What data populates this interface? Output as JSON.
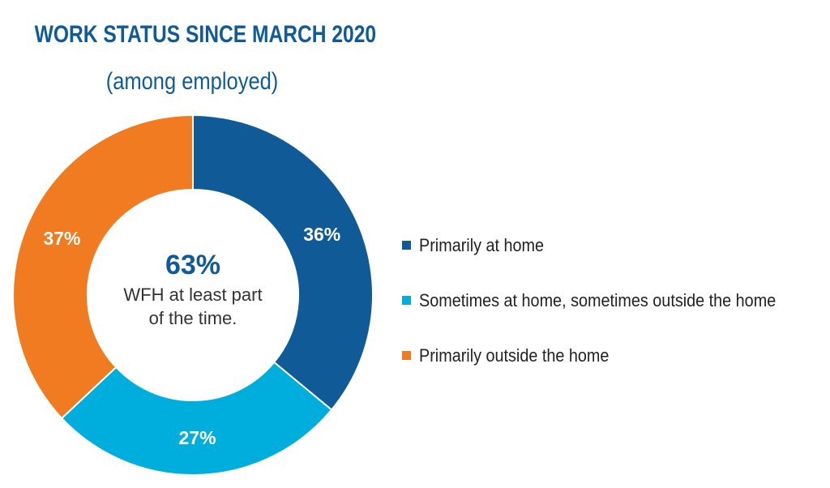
{
  "chart_data": {
    "type": "pie",
    "title": "WORK STATUS SINCE MARCH 2020",
    "subtitle": "(among employed)",
    "center_value": "63%",
    "center_text": [
      "WFH at least part",
      "of the time."
    ],
    "slices": [
      {
        "name": "Primarily at home",
        "value": 36,
        "label": "36%",
        "color": "#0f5a97"
      },
      {
        "name": "Sometimes at home, sometimes outside the home",
        "value": 27,
        "label": "27%",
        "color": "#00aedd"
      },
      {
        "name": "Primarily outside the home",
        "value": 37,
        "label": "37%",
        "color": "#f17b21"
      }
    ]
  }
}
